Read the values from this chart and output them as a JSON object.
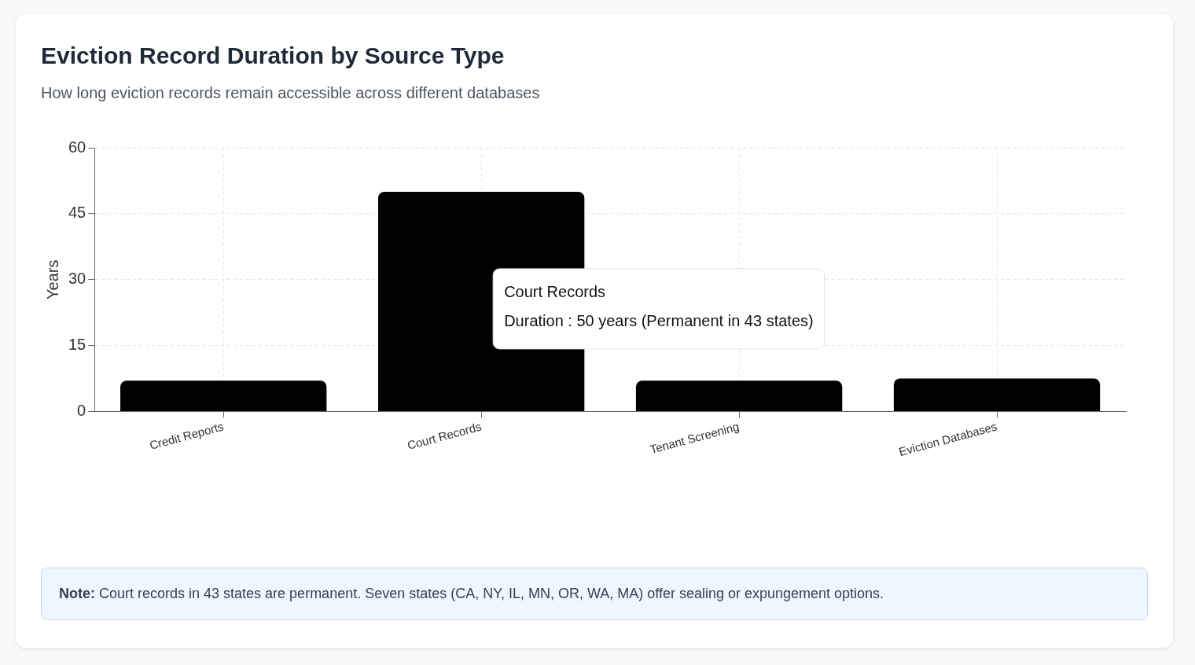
{
  "chart_data": {
    "type": "bar",
    "title": "Eviction Record Duration by Source Type",
    "subtitle": "How long eviction records remain accessible across different databases",
    "ylabel": "Years",
    "categories": [
      "Credit Reports",
      "Court Records",
      "Tenant Screening",
      "Eviction Databases"
    ],
    "values": [
      7,
      50,
      7,
      7.5
    ],
    "color": "#000000",
    "ylim": [
      0,
      60
    ],
    "yticks": [
      0,
      15,
      30,
      45,
      60
    ],
    "grid": true,
    "legend": false,
    "annotations": [
      "Court Records\nDuration : 50 years (Permanent in 43 states)",
      "Note: Court records in 43 states are permanent. Seven states (CA, NY, IL, MN, OR, WA, MA) offer sealing or expungement options."
    ]
  }
}
